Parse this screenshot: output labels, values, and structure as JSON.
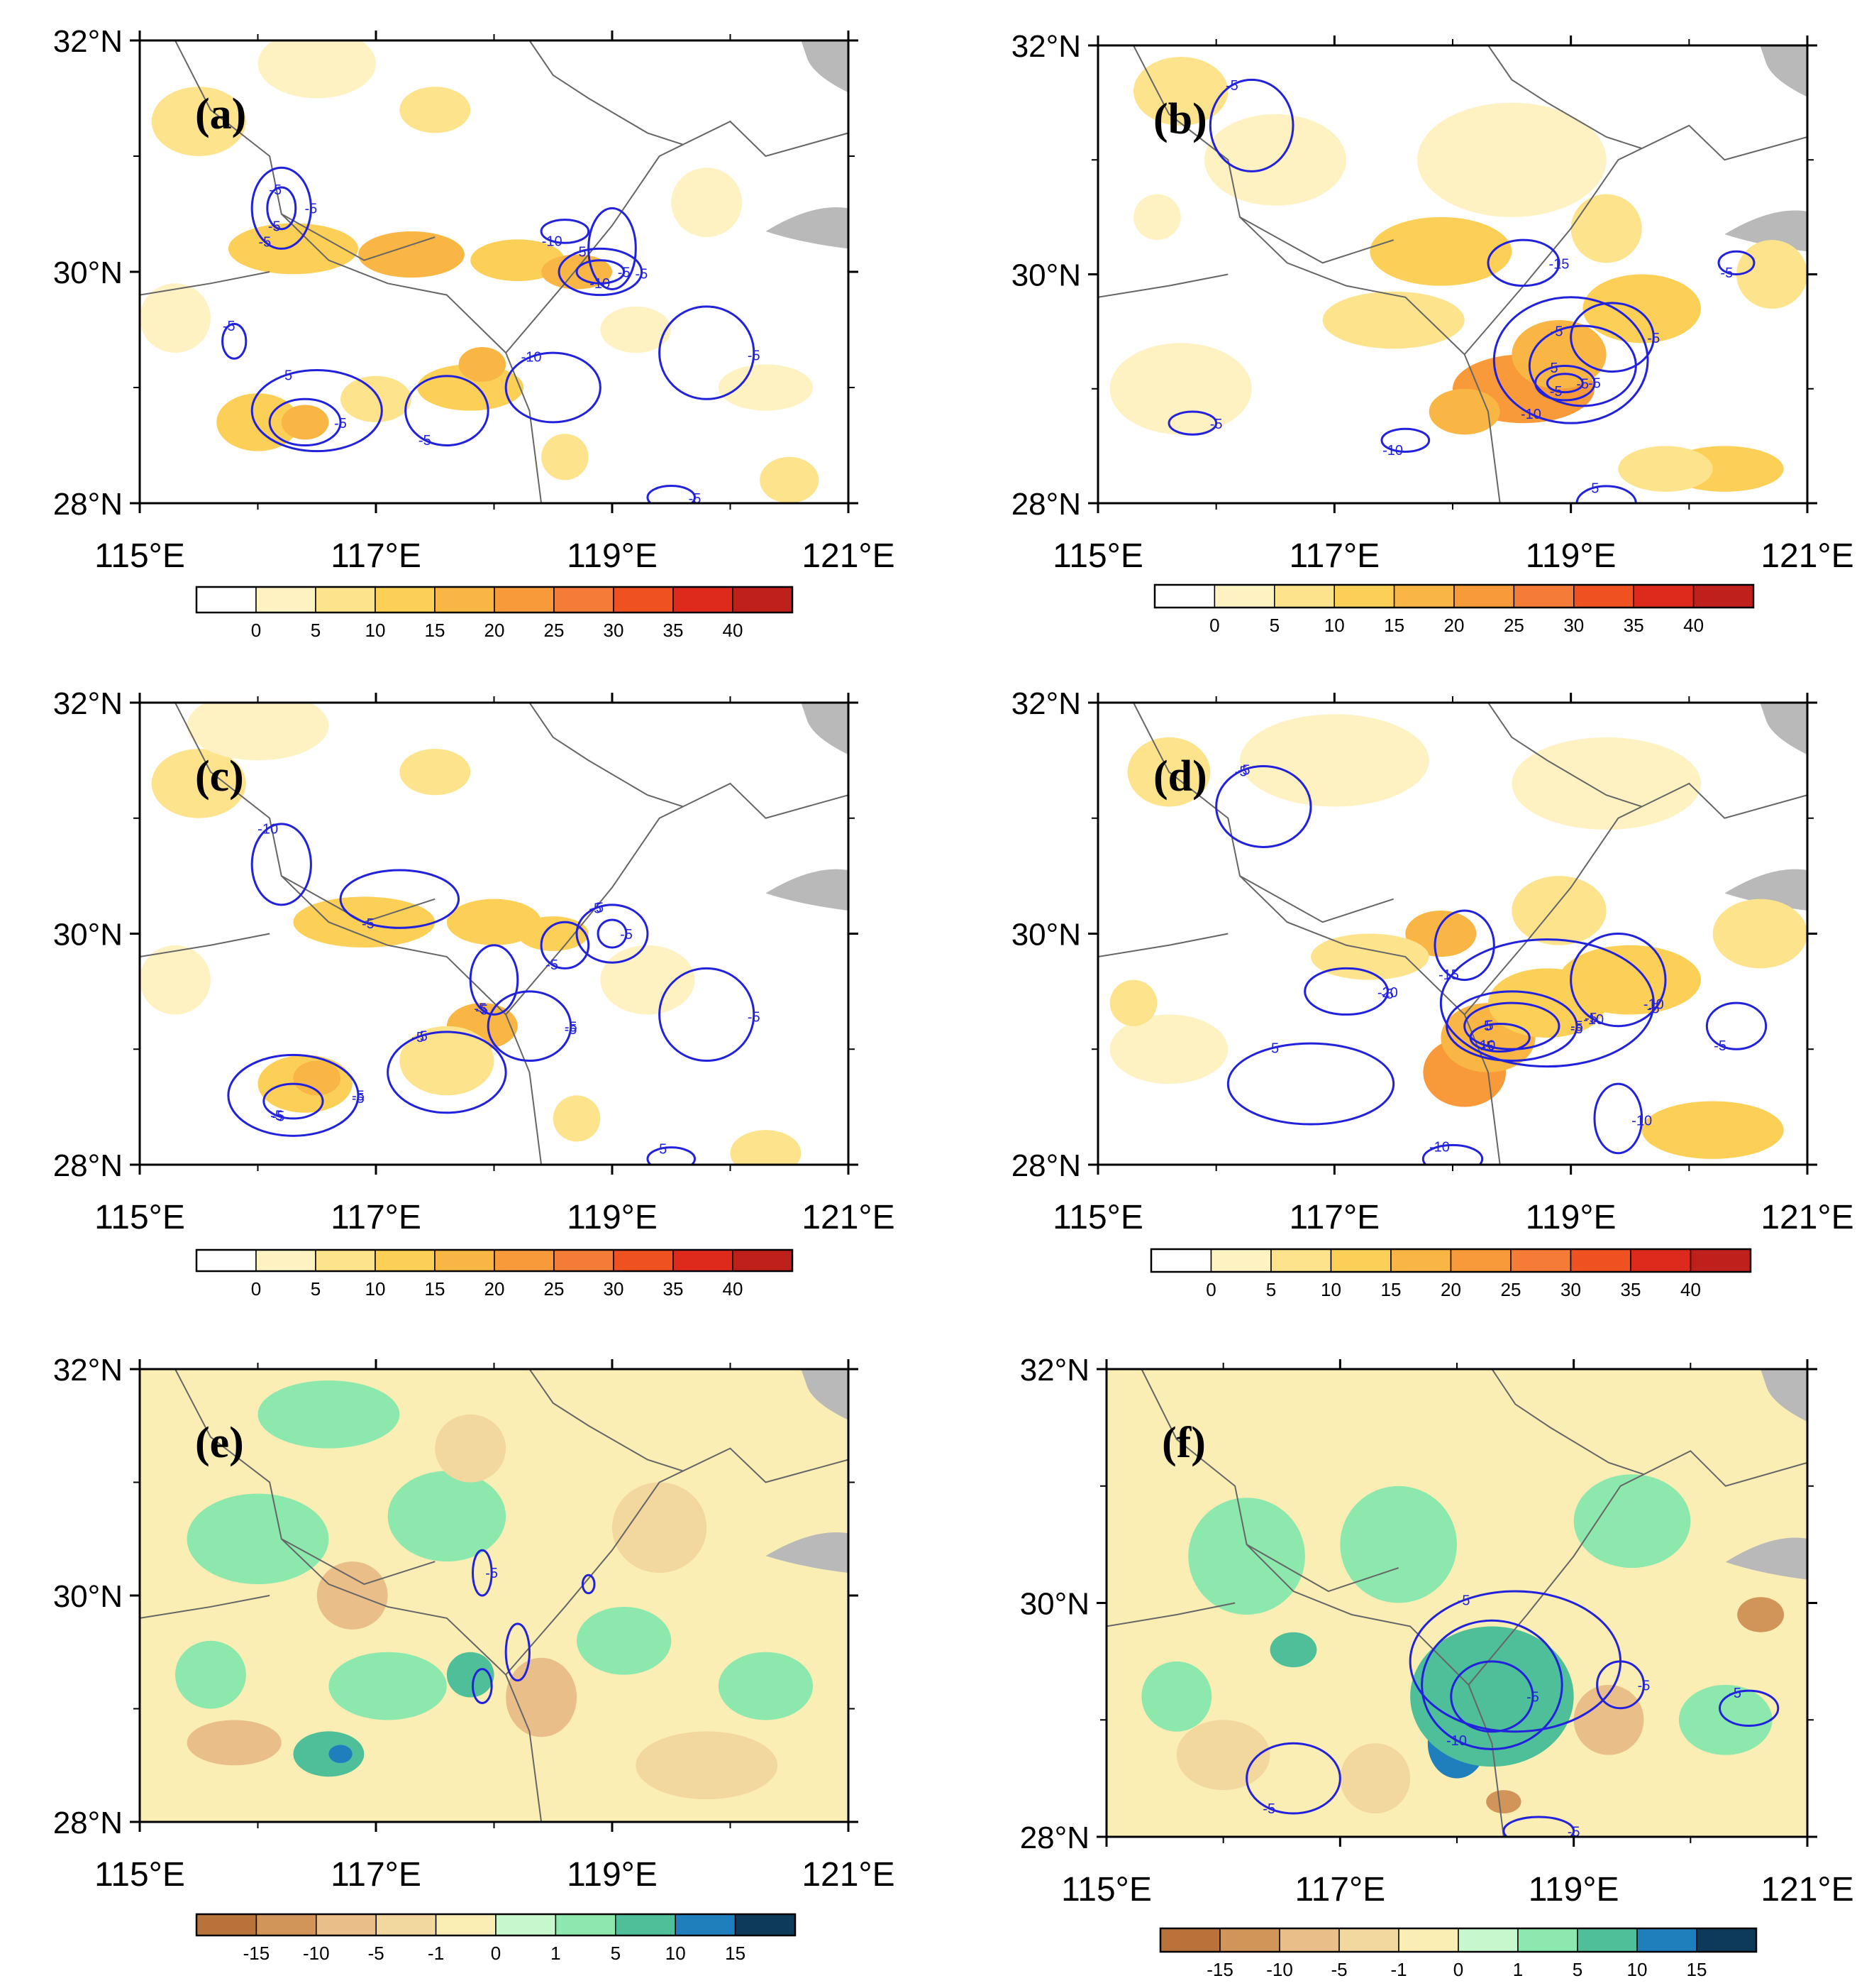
{
  "figure_description_free": true,
  "colors": {
    "contour": "#2222dd",
    "border": "#666666",
    "sea": "#b9b9b9",
    "pos_scale": [
      "#ffffff",
      "#fff2c2",
      "#fde38c",
      "#fccf57",
      "#f9b644",
      "#f89a3a",
      "#f57b38",
      "#ef5121",
      "#de2a1c",
      "#c0201b"
    ],
    "div_scale": [
      "#b9733a",
      "#d1955a",
      "#e9be88",
      "#f2d79f",
      "#fbeeb5",
      "#c7f7cd",
      "#8ce8ad",
      "#4fbf9a",
      "#1f7fbd",
      "#0d3a5a"
    ]
  },
  "chart_data": [
    {
      "panel": "(a)",
      "type": "heatmap",
      "x_ticks": [
        "115°E",
        "117°E",
        "119°E",
        "121°E"
      ],
      "y_ticks": [
        "32°N",
        "30°N",
        "28°N"
      ],
      "xlim": [
        115,
        121
      ],
      "ylim": [
        28,
        32
      ],
      "colorbar": {
        "labels": [
          "0",
          "5",
          "10",
          "15",
          "20",
          "25",
          "30",
          "35",
          "40"
        ]
      },
      "contour_labels": [
        "-5",
        "-5",
        "-5",
        "-5",
        "-10",
        "-5",
        "-5",
        "-5",
        "-10",
        "-5",
        "-10",
        "-5",
        "-5",
        "-5",
        "-5",
        "-5"
      ],
      "blobs": [
        [
          116.3,
          30.2,
          0.55,
          0.22,
          3
        ],
        [
          117.3,
          30.15,
          0.45,
          0.2,
          4
        ],
        [
          118.2,
          30.1,
          0.4,
          0.18,
          3
        ],
        [
          118.7,
          30.0,
          0.3,
          0.15,
          4
        ],
        [
          116.0,
          28.7,
          0.35,
          0.25,
          3
        ],
        [
          116.4,
          28.7,
          0.2,
          0.15,
          4
        ],
        [
          117.8,
          29.0,
          0.45,
          0.2,
          3
        ],
        [
          117.9,
          29.2,
          0.2,
          0.15,
          4
        ],
        [
          117.0,
          28.9,
          0.3,
          0.2,
          2
        ],
        [
          115.5,
          31.3,
          0.4,
          0.3,
          2
        ],
        [
          116.5,
          31.8,
          0.5,
          0.3,
          1
        ],
        [
          117.5,
          31.4,
          0.3,
          0.2,
          2
        ],
        [
          119.8,
          30.6,
          0.3,
          0.3,
          1
        ],
        [
          118.6,
          28.4,
          0.2,
          0.2,
          2
        ],
        [
          120.5,
          28.2,
          0.25,
          0.2,
          2
        ],
        [
          119.2,
          29.5,
          0.3,
          0.2,
          1
        ],
        [
          120.3,
          29.0,
          0.4,
          0.2,
          1
        ],
        [
          115.3,
          29.6,
          0.3,
          0.3,
          1
        ]
      ],
      "contours": [
        [
          116.2,
          30.55,
          0.25,
          0.35
        ],
        [
          116.2,
          30.55,
          0.12,
          0.18
        ],
        [
          118.9,
          30.0,
          0.35,
          0.2
        ],
        [
          118.9,
          30.0,
          0.2,
          0.1
        ],
        [
          119.0,
          30.2,
          0.2,
          0.35
        ],
        [
          116.5,
          28.8,
          0.55,
          0.35
        ],
        [
          116.4,
          28.7,
          0.3,
          0.2
        ],
        [
          117.6,
          28.8,
          0.35,
          0.3
        ],
        [
          118.5,
          29.0,
          0.4,
          0.3
        ],
        [
          119.8,
          29.3,
          0.4,
          0.4
        ],
        [
          118.6,
          30.35,
          0.2,
          0.1
        ],
        [
          115.8,
          29.4,
          0.1,
          0.15
        ],
        [
          119.5,
          28.05,
          0.2,
          0.1
        ]
      ]
    },
    {
      "panel": "(b)",
      "type": "heatmap",
      "x_ticks": [
        "115°E",
        "117°E",
        "119°E",
        "121°E"
      ],
      "y_ticks": [
        "32°N",
        "30°N",
        "28°N"
      ],
      "xlim": [
        115,
        121
      ],
      "ylim": [
        28,
        32
      ],
      "colorbar": {
        "labels": [
          "0",
          "5",
          "10",
          "15",
          "20",
          "25",
          "30",
          "35",
          "40"
        ]
      },
      "contour_labels": [
        "-5",
        "-5",
        "-5",
        "-5",
        "-10",
        "-5",
        "-15",
        "-10",
        "-5",
        "-5",
        "-5",
        "-5",
        "-5"
      ],
      "blobs": [
        [
          118.6,
          29.0,
          0.6,
          0.3,
          5
        ],
        [
          118.9,
          29.3,
          0.4,
          0.3,
          4
        ],
        [
          118.1,
          28.8,
          0.3,
          0.2,
          4
        ],
        [
          119.6,
          29.7,
          0.5,
          0.3,
          3
        ],
        [
          117.9,
          30.2,
          0.6,
          0.3,
          3
        ],
        [
          117.5,
          29.6,
          0.6,
          0.25,
          2
        ],
        [
          119.3,
          30.4,
          0.3,
          0.3,
          2
        ],
        [
          120.3,
          28.3,
          0.5,
          0.2,
          3
        ],
        [
          119.8,
          28.3,
          0.4,
          0.2,
          2
        ],
        [
          115.7,
          31.6,
          0.4,
          0.3,
          2
        ],
        [
          116.5,
          31.0,
          0.6,
          0.4,
          1
        ],
        [
          118.5,
          31.0,
          0.8,
          0.5,
          1
        ],
        [
          115.7,
          29.0,
          0.6,
          0.4,
          1
        ],
        [
          120.7,
          30.0,
          0.3,
          0.3,
          2
        ],
        [
          115.5,
          30.5,
          0.2,
          0.2,
          1
        ]
      ],
      "contours": [
        [
          118.95,
          29.05,
          0.25,
          0.15
        ],
        [
          118.95,
          29.05,
          0.15,
          0.08
        ],
        [
          119.1,
          29.2,
          0.45,
          0.35
        ],
        [
          119.35,
          29.45,
          0.35,
          0.3
        ],
        [
          119.0,
          29.25,
          0.65,
          0.55
        ],
        [
          116.3,
          31.3,
          0.35,
          0.4
        ],
        [
          118.6,
          30.1,
          0.3,
          0.2
        ],
        [
          117.6,
          28.55,
          0.2,
          0.1
        ],
        [
          119.3,
          28.0,
          0.25,
          0.15
        ],
        [
          115.8,
          28.7,
          0.2,
          0.1
        ],
        [
          120.4,
          30.1,
          0.15,
          0.1
        ]
      ]
    },
    {
      "panel": "(c)",
      "type": "heatmap",
      "x_ticks": [
        "115°E",
        "117°E",
        "119°E",
        "121°E"
      ],
      "y_ticks": [
        "32°N",
        "30°N",
        "28°N"
      ],
      "xlim": [
        115,
        121
      ],
      "ylim": [
        28,
        32
      ],
      "colorbar": {
        "labels": [
          "0",
          "5",
          "10",
          "15",
          "20",
          "25",
          "30",
          "35",
          "40"
        ]
      },
      "contour_labels": [
        "-5",
        "-5",
        "-5",
        "-5",
        "-5",
        "-5",
        "-5",
        "-5",
        "-10",
        "-5",
        "-5",
        "-5",
        "-5",
        "-5",
        "-5",
        "-5",
        "-5",
        "-5"
      ],
      "blobs": [
        [
          116.9,
          30.1,
          0.6,
          0.22,
          3
        ],
        [
          118.0,
          30.1,
          0.4,
          0.2,
          3
        ],
        [
          118.5,
          30.0,
          0.3,
          0.15,
          3
        ],
        [
          116.4,
          28.7,
          0.4,
          0.25,
          3
        ],
        [
          116.5,
          28.75,
          0.2,
          0.15,
          4
        ],
        [
          117.9,
          29.2,
          0.3,
          0.2,
          4
        ],
        [
          117.6,
          28.9,
          0.4,
          0.3,
          2
        ],
        [
          115.5,
          31.3,
          0.4,
          0.3,
          2
        ],
        [
          117.5,
          31.4,
          0.3,
          0.2,
          2
        ],
        [
          118.7,
          28.4,
          0.2,
          0.2,
          2
        ],
        [
          120.3,
          28.1,
          0.3,
          0.2,
          2
        ],
        [
          119.3,
          29.6,
          0.4,
          0.3,
          1
        ],
        [
          116.0,
          31.8,
          0.6,
          0.3,
          1
        ],
        [
          115.3,
          29.6,
          0.3,
          0.3,
          1
        ]
      ],
      "contours": [
        [
          116.3,
          28.6,
          0.55,
          0.35
        ],
        [
          116.3,
          28.55,
          0.25,
          0.15
        ],
        [
          117.6,
          28.8,
          0.5,
          0.35
        ],
        [
          118.3,
          29.2,
          0.35,
          0.3
        ],
        [
          118.0,
          29.6,
          0.2,
          0.3
        ],
        [
          119.0,
          30.0,
          0.3,
          0.25
        ],
        [
          119.0,
          30.0,
          0.12,
          0.12
        ],
        [
          117.2,
          30.3,
          0.5,
          0.25
        ],
        [
          116.2,
          30.6,
          0.25,
          0.35
        ],
        [
          119.8,
          29.3,
          0.4,
          0.4
        ],
        [
          118.6,
          29.9,
          0.2,
          0.2
        ],
        [
          119.5,
          28.05,
          0.2,
          0.1
        ]
      ]
    },
    {
      "panel": "(d)",
      "type": "heatmap",
      "x_ticks": [
        "115°E",
        "117°E",
        "119°E",
        "121°E"
      ],
      "y_ticks": [
        "32°N",
        "30°N",
        "28°N"
      ],
      "xlim": [
        115,
        121
      ],
      "ylim": [
        28,
        32
      ],
      "colorbar": {
        "labels": [
          "0",
          "5",
          "10",
          "15",
          "20",
          "25",
          "30",
          "35",
          "40"
        ]
      },
      "contour_labels": [
        "-5",
        "-5",
        "-5",
        "-10",
        "-10",
        "-5",
        "-20",
        "-15",
        "-5",
        "-10",
        "-5",
        "-10",
        "-5",
        "-10",
        "-5",
        "-5",
        "-5",
        "-5",
        "-5"
      ],
      "blobs": [
        [
          118.1,
          28.8,
          0.35,
          0.3,
          5
        ],
        [
          118.3,
          29.1,
          0.4,
          0.3,
          4
        ],
        [
          118.8,
          29.4,
          0.5,
          0.3,
          3
        ],
        [
          119.5,
          29.6,
          0.6,
          0.3,
          3
        ],
        [
          117.9,
          30.0,
          0.3,
          0.2,
          4
        ],
        [
          117.3,
          29.8,
          0.5,
          0.2,
          2
        ],
        [
          118.9,
          30.2,
          0.4,
          0.3,
          2
        ],
        [
          120.2,
          28.3,
          0.6,
          0.25,
          3
        ],
        [
          115.6,
          31.4,
          0.35,
          0.3,
          2
        ],
        [
          117.0,
          31.5,
          0.8,
          0.4,
          1
        ],
        [
          119.3,
          31.3,
          0.8,
          0.4,
          1
        ],
        [
          115.6,
          29.0,
          0.5,
          0.3,
          1
        ],
        [
          120.6,
          30.0,
          0.4,
          0.3,
          2
        ],
        [
          115.3,
          29.4,
          0.2,
          0.2,
          2
        ]
      ],
      "contours": [
        [
          118.5,
          29.2,
          0.55,
          0.3
        ],
        [
          118.5,
          29.2,
          0.4,
          0.2
        ],
        [
          118.4,
          29.1,
          0.25,
          0.12
        ],
        [
          118.8,
          29.4,
          0.9,
          0.55
        ],
        [
          119.4,
          29.6,
          0.4,
          0.4
        ],
        [
          116.4,
          31.1,
          0.4,
          0.35
        ],
        [
          117.1,
          29.5,
          0.35,
          0.2
        ],
        [
          118.1,
          29.9,
          0.25,
          0.3
        ],
        [
          116.8,
          28.7,
          0.7,
          0.35
        ],
        [
          119.4,
          28.4,
          0.2,
          0.3
        ],
        [
          120.4,
          29.2,
          0.25,
          0.2
        ],
        [
          118.0,
          28.05,
          0.25,
          0.12
        ]
      ]
    },
    {
      "panel": "(e)",
      "type": "heatmap",
      "x_ticks": [
        "115°E",
        "117°E",
        "119°E",
        "121°E"
      ],
      "y_ticks": [
        "32°N",
        "30°N",
        "28°N"
      ],
      "xlim": [
        115,
        121
      ],
      "ylim": [
        28,
        32
      ],
      "colorbar": {
        "labels": [
          "-15",
          "-10",
          "-5",
          "-1",
          "0",
          "1",
          "5",
          "10",
          "15"
        ]
      },
      "contour_labels": [
        "-5"
      ],
      "blobs": [
        [
          116.6,
          28.6,
          0.3,
          0.2,
          7
        ],
        [
          116.7,
          28.6,
          0.1,
          0.08,
          8
        ],
        [
          117.9,
          29.3,
          0.1,
          0.1,
          8
        ],
        [
          117.8,
          29.3,
          0.2,
          0.2,
          7
        ],
        [
          115.6,
          29.3,
          0.3,
          0.3,
          6
        ],
        [
          117.1,
          29.2,
          0.5,
          0.3,
          6
        ],
        [
          116.0,
          30.5,
          0.6,
          0.4,
          6
        ],
        [
          117.6,
          30.7,
          0.5,
          0.4,
          6
        ],
        [
          120.3,
          29.2,
          0.4,
          0.3,
          6
        ],
        [
          119.1,
          29.6,
          0.4,
          0.3,
          6
        ],
        [
          116.6,
          31.6,
          0.6,
          0.3,
          6
        ],
        [
          118.4,
          29.2,
          0.15,
          0.15,
          1
        ],
        [
          118.4,
          29.1,
          0.3,
          0.35,
          2
        ],
        [
          115.8,
          28.7,
          0.4,
          0.2,
          2
        ],
        [
          116.8,
          30.0,
          0.3,
          0.3,
          2
        ],
        [
          119.4,
          30.6,
          0.4,
          0.4,
          3
        ],
        [
          119.8,
          28.5,
          0.6,
          0.3,
          3
        ],
        [
          117.8,
          31.3,
          0.3,
          0.3,
          3
        ]
      ],
      "contours": [
        [
          117.9,
          30.2,
          0.08,
          0.2
        ],
        [
          118.2,
          29.5,
          0.1,
          0.25
        ],
        [
          117.9,
          29.2,
          0.08,
          0.15
        ],
        [
          118.8,
          30.1,
          0.05,
          0.08
        ]
      ]
    },
    {
      "panel": "(f)",
      "type": "heatmap",
      "x_ticks": [
        "115°E",
        "117°E",
        "119°E",
        "121°E"
      ],
      "y_ticks": [
        "32°N",
        "30°N",
        "28°N"
      ],
      "xlim": [
        115,
        121
      ],
      "ylim": [
        28,
        32
      ],
      "colorbar": {
        "labels": [
          "-15",
          "-10",
          "-5",
          "-1",
          "0",
          "1",
          "5",
          "10",
          "15"
        ]
      },
      "contour_labels": [
        "-5",
        "-10",
        "-5",
        "-5",
        "-5",
        "-5",
        "-5"
      ],
      "blobs": [
        [
          118.3,
          29.3,
          0.35,
          0.2,
          9
        ],
        [
          118.1,
          29.0,
          0.2,
          0.25,
          9
        ],
        [
          118.2,
          29.15,
          0.5,
          0.4,
          8
        ],
        [
          118.0,
          28.8,
          0.25,
          0.3,
          8
        ],
        [
          118.3,
          29.2,
          0.7,
          0.6,
          7
        ],
        [
          116.6,
          29.6,
          0.2,
          0.15,
          7
        ],
        [
          115.6,
          29.2,
          0.3,
          0.3,
          6
        ],
        [
          116.2,
          30.4,
          0.5,
          0.5,
          6
        ],
        [
          117.5,
          30.5,
          0.5,
          0.5,
          6
        ],
        [
          119.5,
          30.7,
          0.5,
          0.4,
          6
        ],
        [
          120.3,
          29.0,
          0.4,
          0.3,
          6
        ],
        [
          118.4,
          28.3,
          0.15,
          0.1,
          1
        ],
        [
          119.3,
          29.0,
          0.3,
          0.3,
          2
        ],
        [
          120.6,
          29.9,
          0.2,
          0.15,
          1
        ],
        [
          116.0,
          28.7,
          0.4,
          0.3,
          3
        ],
        [
          117.3,
          28.5,
          0.3,
          0.3,
          3
        ]
      ],
      "contours": [
        [
          118.3,
          29.2,
          0.35,
          0.3
        ],
        [
          118.3,
          29.3,
          0.6,
          0.55
        ],
        [
          118.5,
          29.5,
          0.9,
          0.6
        ],
        [
          119.4,
          29.3,
          0.2,
          0.2
        ],
        [
          116.6,
          28.5,
          0.4,
          0.3
        ],
        [
          120.5,
          29.1,
          0.25,
          0.15
        ],
        [
          118.7,
          28.05,
          0.3,
          0.12
        ]
      ]
    }
  ]
}
